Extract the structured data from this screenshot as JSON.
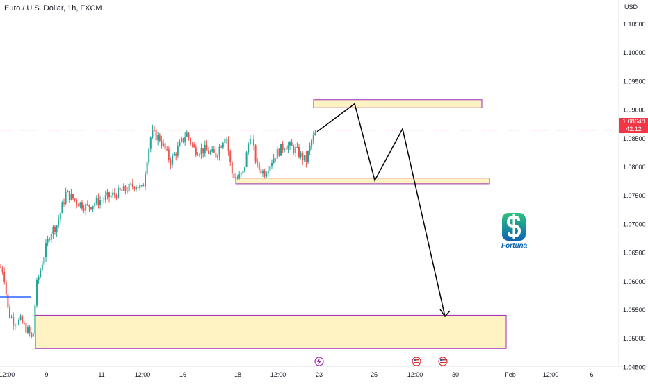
{
  "chart_data": {
    "type": "candlestick",
    "title": "Euro / U.S. Dollar, 1h, FXCM",
    "currency_label": "USD",
    "y_ticks": [
      "1.10500",
      "1.10000",
      "1.09500",
      "1.09000",
      "1.08500",
      "1.08000",
      "1.07500",
      "1.07000",
      "1.06500",
      "1.06000",
      "1.05500",
      "1.05000",
      "1.04500"
    ],
    "x_ticks": [
      "12:00",
      "9",
      "11",
      "12:00",
      "16",
      "18",
      "12:00",
      "23",
      "25",
      "12:00",
      "30",
      "Feb",
      "12:00",
      "6"
    ],
    "last_price": "1.08648",
    "countdown": "42:12",
    "zones": [
      {
        "label": "upper-target-zone",
        "low": 1.0904,
        "high": 1.0918
      },
      {
        "label": "mid-support-zone",
        "low": 1.0771,
        "high": 1.0781
      },
      {
        "label": "lower-demand-zone",
        "low": 1.0483,
        "high": 1.0541
      }
    ],
    "projection_path_prices": [
      1.0862,
      1.0911,
      1.0777,
      1.0867,
      1.0539
    ],
    "horizontal_line_price": 1.0573,
    "colors": {
      "up": "#26a69a",
      "down": "#ef5350",
      "zone_fill": "#fff3c4",
      "zone_border": "#9c27b0",
      "last_price_line": "#f23645",
      "projection": "#000000",
      "hline": "#2962ff"
    }
  },
  "branding": {
    "logo_text": "Fortuna",
    "logo_icon": "dollar-s-icon"
  },
  "event_icons": [
    "lightning-icon",
    "us-flag-icon",
    "us-flag-icon"
  ]
}
